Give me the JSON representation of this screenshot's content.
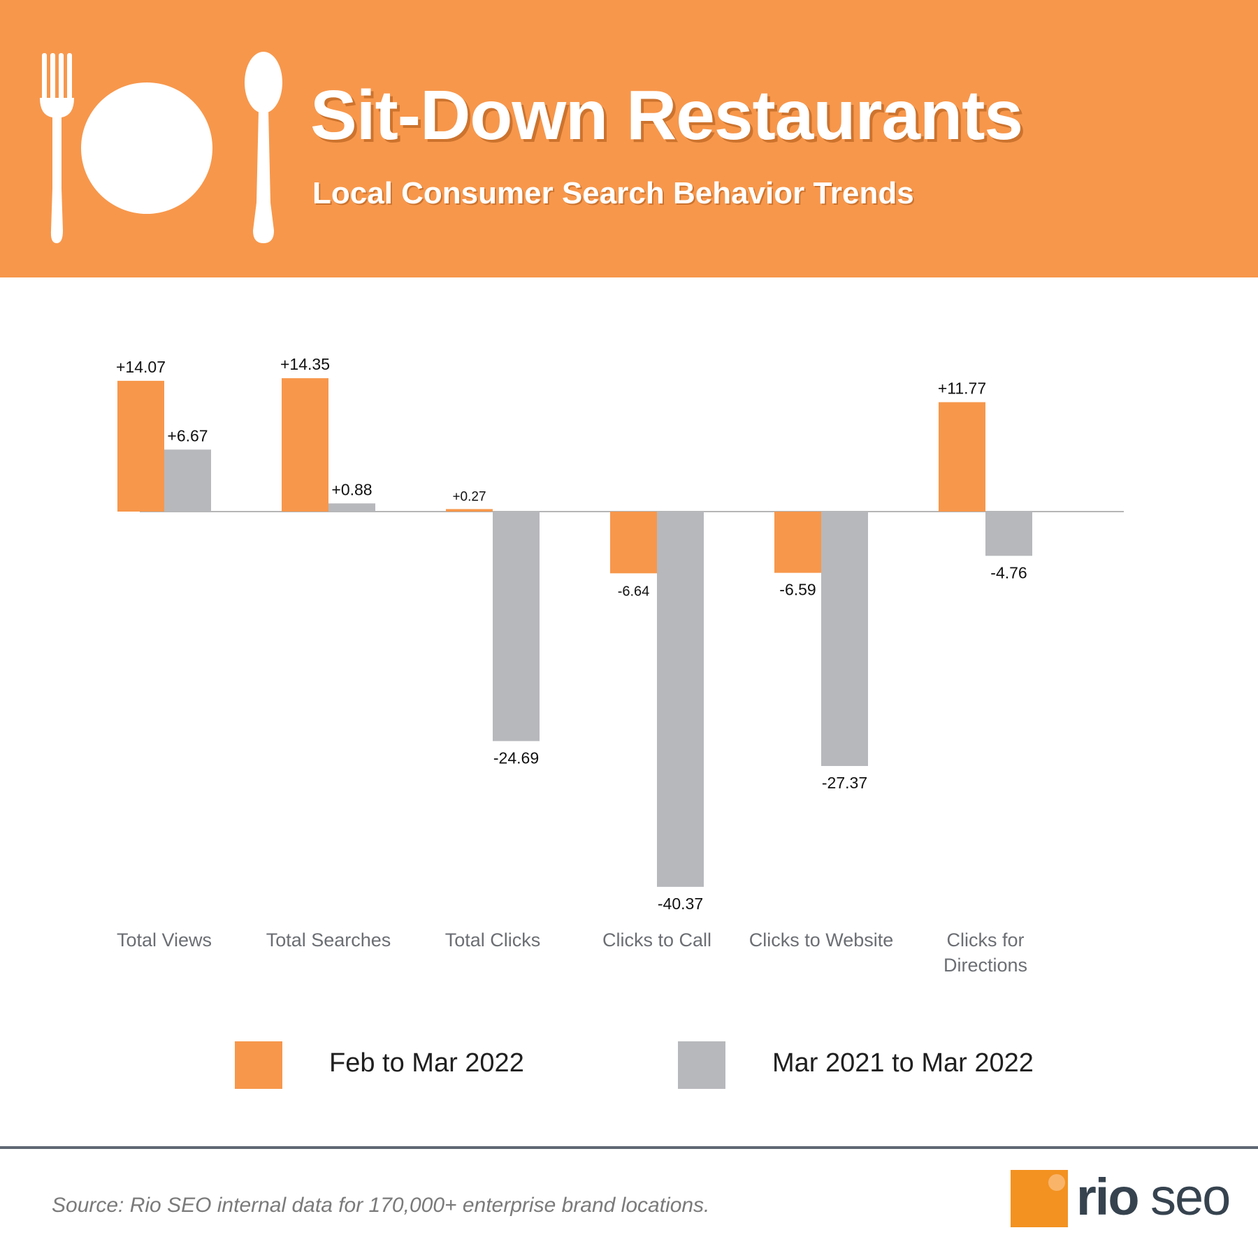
{
  "header": {
    "title": "Sit-Down Restaurants",
    "subtitle": "Local Consumer Search Behavior Trends"
  },
  "colors": {
    "header_bg": "#f7974b",
    "series_feb_mar": "#f7974b",
    "series_yoy": "#b7b8bc",
    "baseline": "#b5b5b5",
    "category_label": "#6b6e73",
    "value_label": "#111111"
  },
  "chart_data": {
    "type": "bar",
    "title": "Sit-Down Restaurants",
    "subtitle": "Local Consumer Search Behavior Trends",
    "xlabel": "",
    "ylabel": "",
    "ylim": [
      -42,
      16
    ],
    "grid": false,
    "categories": [
      [
        "Total Views"
      ],
      [
        "Total Searches"
      ],
      [
        "Total Clicks"
      ],
      [
        "Clicks to Call"
      ],
      [
        "Clicks to Website"
      ],
      [
        "Clicks for",
        "Directions"
      ]
    ],
    "series": [
      {
        "name": "Feb to Mar 2022",
        "values": [
          14.07,
          14.35,
          0.27,
          -6.64,
          -6.59,
          11.77
        ],
        "labels": [
          "+14.07",
          "+14.35",
          "+0.27",
          "-6.64",
          "-6.59",
          "+11.77"
        ]
      },
      {
        "name": "Mar 2021 to Mar 2022",
        "values": [
          6.67,
          0.88,
          -24.69,
          -40.37,
          -27.37,
          -4.76
        ],
        "labels": [
          "+6.67",
          "+0.88",
          "-24.69",
          "-40.37",
          "-27.37",
          "-4.76"
        ]
      }
    ],
    "legend_position": "bottom"
  },
  "legend": {
    "feb_mar_label": "Feb to Mar 2022",
    "yoy_label": "Mar 2021 to Mar 2022"
  },
  "footer": {
    "source": "Source: Rio SEO internal data for 170,000+ enterprise brand locations.",
    "logo_rio": "rio",
    "logo_seo": "seo"
  }
}
